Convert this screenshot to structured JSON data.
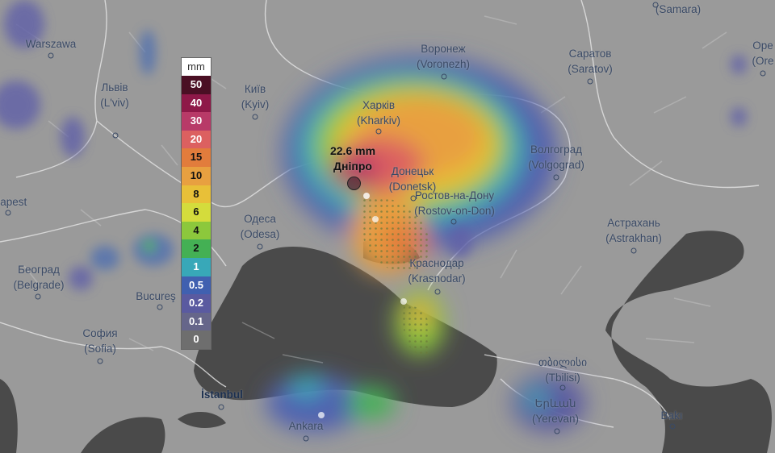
{
  "legend": {
    "unit": "mm",
    "steps": [
      {
        "label": "50",
        "color": "#4a0f24",
        "text": "#fff"
      },
      {
        "label": "40",
        "color": "#8e1848",
        "text": "#fff"
      },
      {
        "label": "30",
        "color": "#b83a68",
        "text": "#fff"
      },
      {
        "label": "20",
        "color": "#dc6060",
        "text": "#fff"
      },
      {
        "label": "15",
        "color": "#e27c3c",
        "text": "#111"
      },
      {
        "label": "10",
        "color": "#e8a040",
        "text": "#111"
      },
      {
        "label": "8",
        "color": "#e8c038",
        "text": "#111"
      },
      {
        "label": "6",
        "color": "#d4dc3c",
        "text": "#111"
      },
      {
        "label": "4",
        "color": "#8cc83c",
        "text": "#111"
      },
      {
        "label": "2",
        "color": "#44b054",
        "text": "#111"
      },
      {
        "label": "1",
        "color": "#38a8b8",
        "text": "#fff"
      },
      {
        "label": "0.5",
        "color": "#4060b0",
        "text": "#fff"
      },
      {
        "label": "0.2",
        "color": "#5a5aa0",
        "text": "#fff"
      },
      {
        "label": "0.1",
        "color": "#66668a",
        "text": "#fff"
      },
      {
        "label": "0",
        "color": "#6e6e6e",
        "text": "#fff"
      }
    ]
  },
  "highlight": {
    "value": "22.6 mm",
    "city": "Дніпро"
  },
  "cities": [
    {
      "name": "Warszawa",
      "alt": ""
    },
    {
      "name": "Львів",
      "alt": "(L'viv)"
    },
    {
      "name": "dapest",
      "alt": ""
    },
    {
      "name": "Київ",
      "alt": "(Kyiv)"
    },
    {
      "name": "Харків",
      "alt": "(Kharkiv)"
    },
    {
      "name": "Воронеж",
      "alt": "(Voronezh)"
    },
    {
      "name": "Саратов",
      "alt": "(Saratov)"
    },
    {
      "name": "(Samara)",
      "alt": ""
    },
    {
      "name": "Оре",
      "alt": "(Ore"
    },
    {
      "name": "Волгоград",
      "alt": "(Volgograd)"
    },
    {
      "name": "Донецьк",
      "alt": "(Donetsk)"
    },
    {
      "name": "Ростов-на-Дону",
      "alt": "(Rostov-on-Don)"
    },
    {
      "name": "Одеса",
      "alt": "(Odesa)"
    },
    {
      "name": "Астрахань",
      "alt": "(Astrakhan)"
    },
    {
      "name": "Краснодар",
      "alt": "(Krasnodar)"
    },
    {
      "name": "Београд",
      "alt": "(Belgrade)"
    },
    {
      "name": "Bucureş",
      "alt": ""
    },
    {
      "name": "София",
      "alt": "(Sofia)"
    },
    {
      "name": "İstanbul",
      "alt": ""
    },
    {
      "name": "Ankara",
      "alt": ""
    },
    {
      "name": "თბილისი",
      "alt": "(Tbilisi)"
    },
    {
      "name": "Երևան",
      "alt": "(Yerevan)"
    },
    {
      "name": "Bakı",
      "alt": ""
    }
  ]
}
